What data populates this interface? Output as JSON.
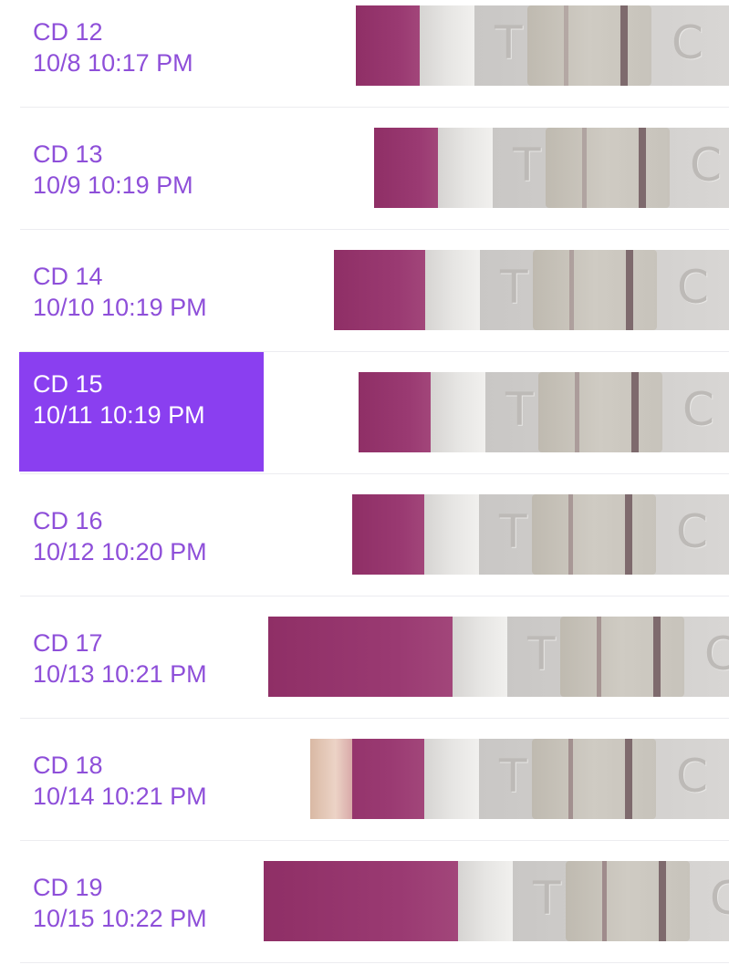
{
  "colors": {
    "accent": "#8a3ff0",
    "label_text": "#8e4fd9",
    "selected_text": "#ffffff"
  },
  "tests": [
    {
      "cycle_day": "CD 12",
      "datetime": "10/8 10:17 PM",
      "selected": false
    },
    {
      "cycle_day": "CD 13",
      "datetime": "10/9 10:19 PM",
      "selected": false
    },
    {
      "cycle_day": "CD 14",
      "datetime": "10/10 10:19 PM",
      "selected": false
    },
    {
      "cycle_day": "CD 15",
      "datetime": "10/11 10:19 PM",
      "selected": true
    },
    {
      "cycle_day": "CD 16",
      "datetime": "10/12 10:20 PM",
      "selected": false
    },
    {
      "cycle_day": "CD 17",
      "datetime": "10/13 10:21 PM",
      "selected": false
    },
    {
      "cycle_day": "CD 18",
      "datetime": "10/14 10:21 PM",
      "selected": false
    },
    {
      "cycle_day": "CD 19",
      "datetime": "10/15 10:22 PM",
      "selected": false
    }
  ],
  "strip_letters": {
    "test": "T",
    "control": "C"
  }
}
